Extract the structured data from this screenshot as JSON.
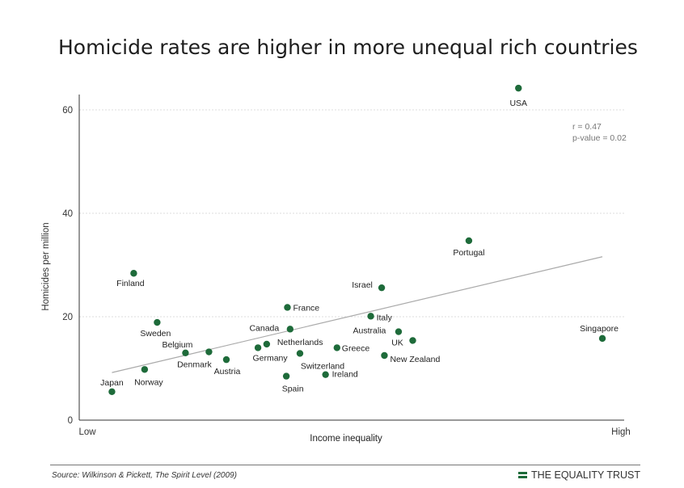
{
  "title": "Homicide rates are higher in more unequal rich countries",
  "source": "Source: Wilkinson & Pickett, The Spirit Level (2009)",
  "brand": "THE EQUALITY TRUST",
  "colors": {
    "point": "#1e6b3a",
    "trend": "#aaaaaa",
    "grid": "#dddddd"
  },
  "chart_data": {
    "type": "scatter",
    "xlabel": "Income inequality",
    "ylabel": "Homicides per million",
    "x_low_label": "Low",
    "x_high_label": "High",
    "xlim": [
      0,
      100
    ],
    "ylim": [
      0,
      65
    ],
    "yticks": [
      0,
      20,
      40,
      60
    ],
    "grid": true,
    "annotation": [
      "r = 0.47",
      "p-value = 0.02"
    ],
    "trendline": {
      "x": [
        6,
        96
      ],
      "y": [
        9.2,
        31.6
      ]
    },
    "points": [
      {
        "label": "USA",
        "x": 80.6,
        "y": 64.2,
        "dx": 0,
        "dy": 22,
        "anchor": "middle"
      },
      {
        "label": "Portugal",
        "x": 71.5,
        "y": 34.7,
        "dx": 0,
        "dy": 18,
        "anchor": "middle"
      },
      {
        "label": "Singapore",
        "x": 96,
        "y": 15.8,
        "dx": -4,
        "dy": -9,
        "anchor": "middle"
      },
      {
        "label": "Finland",
        "x": 10,
        "y": 28.4,
        "dx": -4,
        "dy": 16,
        "anchor": "middle"
      },
      {
        "label": "Israel",
        "x": 55.5,
        "y": 25.6,
        "dx": -24,
        "dy": 0,
        "anchor": "middle"
      },
      {
        "label": "France",
        "x": 38.2,
        "y": 21.8,
        "dx": 7,
        "dy": 4,
        "anchor": "start"
      },
      {
        "label": "Italy",
        "x": 53.5,
        "y": 20.1,
        "dx": 7,
        "dy": 5,
        "anchor": "start"
      },
      {
        "label": "Sweden",
        "x": 14.3,
        "y": 18.9,
        "dx": -2,
        "dy": 17,
        "anchor": "middle"
      },
      {
        "label": "Canada",
        "x": 38.7,
        "y": 17.6,
        "dx": -32,
        "dy": 2,
        "anchor": "middle"
      },
      {
        "label": "Australia",
        "x": 58.6,
        "y": 17.1,
        "dx": -36,
        "dy": 2,
        "anchor": "middle"
      },
      {
        "label": "UK",
        "x": 61.2,
        "y": 15.4,
        "dx": -19,
        "dy": 6,
        "anchor": "middle"
      },
      {
        "label": "Netherlands",
        "x": 34.4,
        "y": 14.7,
        "dx": 13,
        "dy": 1,
        "anchor": "start"
      },
      {
        "label": "Germany",
        "x": 32.8,
        "y": 14.0,
        "dx": 15,
        "dy": 16,
        "anchor": "middle"
      },
      {
        "label": "Greece",
        "x": 47.3,
        "y": 14.0,
        "dx": 6,
        "dy": 4,
        "anchor": "start"
      },
      {
        "label": "Belgium",
        "x": 19.5,
        "y": 13.0,
        "dx": -10,
        "dy": -7,
        "anchor": "middle"
      },
      {
        "label": "Denmark",
        "x": 23.8,
        "y": 13.2,
        "dx": -18,
        "dy": 19,
        "anchor": "middle"
      },
      {
        "label": "Switzerland",
        "x": 40.5,
        "y": 12.9,
        "dx": 28,
        "dy": 19,
        "anchor": "middle"
      },
      {
        "label": "New Zealand",
        "x": 56,
        "y": 12.5,
        "dx": 7,
        "dy": 8,
        "anchor": "start"
      },
      {
        "label": "Austria",
        "x": 27,
        "y": 11.7,
        "dx": 1,
        "dy": 18,
        "anchor": "middle"
      },
      {
        "label": "Norway",
        "x": 12,
        "y": 9.8,
        "dx": 5,
        "dy": 19,
        "anchor": "middle"
      },
      {
        "label": "Ireland",
        "x": 45.2,
        "y": 8.8,
        "dx": 8,
        "dy": 3,
        "anchor": "start"
      },
      {
        "label": "Spain",
        "x": 38,
        "y": 8.5,
        "dx": 8,
        "dy": 19,
        "anchor": "middle"
      },
      {
        "label": "Japan",
        "x": 6,
        "y": 5.5,
        "dx": 0,
        "dy": -8,
        "anchor": "middle"
      }
    ]
  }
}
